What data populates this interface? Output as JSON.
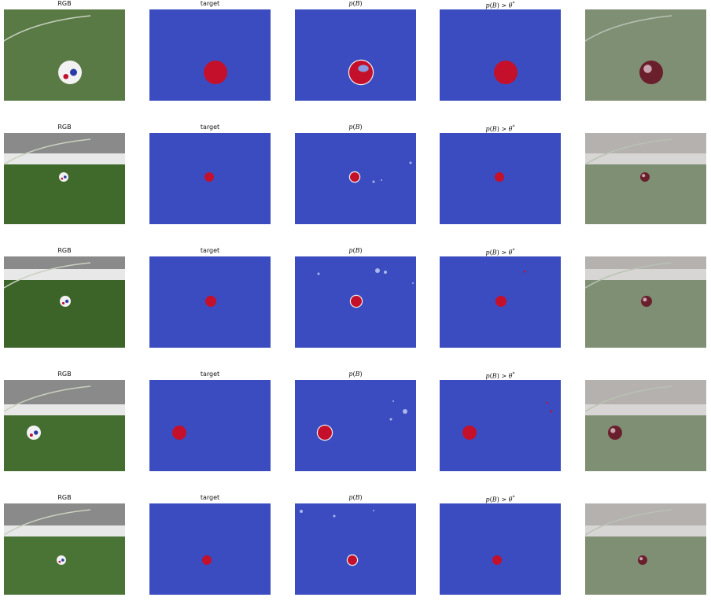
{
  "columns": [
    {
      "key": "rgb",
      "title": "RGB"
    },
    {
      "key": "target",
      "title": "target"
    },
    {
      "key": "prob",
      "title": "p(B)"
    },
    {
      "key": "thresh",
      "title": "p(B) > θ*"
    },
    {
      "key": "overlay",
      "title": ""
    }
  ],
  "rows": [
    {
      "id": 1
    },
    {
      "id": 2
    },
    {
      "id": 3
    },
    {
      "id": 4
    },
    {
      "id": 5
    }
  ],
  "colors": {
    "background_class": "#3b4cc0",
    "ball_class": "#c4102a",
    "grass": "#3e6b2a",
    "boundary": "#f0f0f0"
  }
}
